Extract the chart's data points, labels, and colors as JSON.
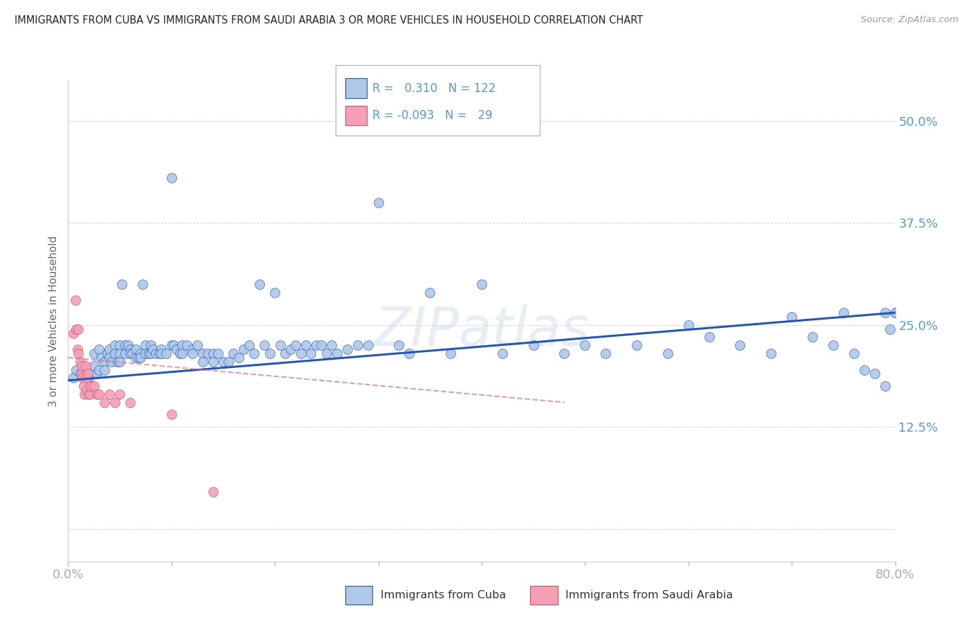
{
  "title": "IMMIGRANTS FROM CUBA VS IMMIGRANTS FROM SAUDI ARABIA 3 OR MORE VEHICLES IN HOUSEHOLD CORRELATION CHART",
  "source": "Source: ZipAtlas.com",
  "ylabel": "3 or more Vehicles in Household",
  "legend_cuba_r": "0.310",
  "legend_cuba_n": "122",
  "legend_saudi_r": "-0.093",
  "legend_saudi_n": "29",
  "legend_label_cuba": "Immigrants from Cuba",
  "legend_label_saudi": "Immigrants from Saudi Arabia",
  "watermark": "ZIPatlas",
  "cuba_color": "#adc8e8",
  "saudi_color": "#f5a0b4",
  "trend_cuba_color": "#2255bb",
  "trend_saudi_color": "#dd7090",
  "background_color": "#ffffff",
  "axis_color": "#5599cc",
  "xlim": [
    0.0,
    0.8
  ],
  "ylim": [
    -0.04,
    0.55
  ],
  "cuba_x": [
    0.005,
    0.008,
    0.012,
    0.015,
    0.018,
    0.02,
    0.022,
    0.025,
    0.025,
    0.028,
    0.03,
    0.03,
    0.032,
    0.035,
    0.035,
    0.038,
    0.04,
    0.04,
    0.042,
    0.045,
    0.045,
    0.048,
    0.05,
    0.05,
    0.05,
    0.052,
    0.055,
    0.055,
    0.058,
    0.06,
    0.06,
    0.062,
    0.065,
    0.065,
    0.068,
    0.07,
    0.07,
    0.072,
    0.075,
    0.075,
    0.078,
    0.08,
    0.08,
    0.082,
    0.085,
    0.088,
    0.09,
    0.09,
    0.095,
    0.1,
    0.1,
    0.102,
    0.105,
    0.108,
    0.11,
    0.11,
    0.115,
    0.12,
    0.12,
    0.125,
    0.13,
    0.13,
    0.135,
    0.14,
    0.14,
    0.145,
    0.15,
    0.155,
    0.16,
    0.165,
    0.17,
    0.175,
    0.18,
    0.185,
    0.19,
    0.195,
    0.2,
    0.205,
    0.21,
    0.215,
    0.22,
    0.225,
    0.23,
    0.235,
    0.24,
    0.245,
    0.25,
    0.255,
    0.26,
    0.27,
    0.28,
    0.29,
    0.3,
    0.32,
    0.33,
    0.35,
    0.37,
    0.4,
    0.42,
    0.45,
    0.48,
    0.5,
    0.52,
    0.55,
    0.58,
    0.6,
    0.62,
    0.65,
    0.68,
    0.7,
    0.72,
    0.74,
    0.75,
    0.76,
    0.77,
    0.78,
    0.79,
    0.79,
    0.795,
    0.8,
    0.8,
    0.8
  ],
  "cuba_y": [
    0.185,
    0.195,
    0.19,
    0.2,
    0.195,
    0.185,
    0.175,
    0.2,
    0.215,
    0.19,
    0.22,
    0.195,
    0.21,
    0.205,
    0.195,
    0.215,
    0.22,
    0.21,
    0.205,
    0.225,
    0.215,
    0.205,
    0.225,
    0.215,
    0.205,
    0.3,
    0.225,
    0.215,
    0.225,
    0.22,
    0.215,
    0.215,
    0.22,
    0.21,
    0.21,
    0.215,
    0.21,
    0.3,
    0.225,
    0.215,
    0.215,
    0.225,
    0.215,
    0.22,
    0.215,
    0.215,
    0.22,
    0.215,
    0.215,
    0.43,
    0.225,
    0.225,
    0.22,
    0.215,
    0.225,
    0.215,
    0.225,
    0.22,
    0.215,
    0.225,
    0.215,
    0.205,
    0.215,
    0.215,
    0.205,
    0.215,
    0.205,
    0.205,
    0.215,
    0.21,
    0.22,
    0.225,
    0.215,
    0.3,
    0.225,
    0.215,
    0.29,
    0.225,
    0.215,
    0.22,
    0.225,
    0.215,
    0.225,
    0.215,
    0.225,
    0.225,
    0.215,
    0.225,
    0.215,
    0.22,
    0.225,
    0.225,
    0.4,
    0.225,
    0.215,
    0.29,
    0.215,
    0.3,
    0.215,
    0.225,
    0.215,
    0.225,
    0.215,
    0.225,
    0.215,
    0.25,
    0.235,
    0.225,
    0.215,
    0.26,
    0.235,
    0.225,
    0.265,
    0.215,
    0.195,
    0.19,
    0.175,
    0.265,
    0.245,
    0.265,
    0.265,
    0.265
  ],
  "saudi_x": [
    0.005,
    0.007,
    0.008,
    0.009,
    0.01,
    0.01,
    0.012,
    0.013,
    0.013,
    0.014,
    0.015,
    0.016,
    0.017,
    0.018,
    0.018,
    0.019,
    0.02,
    0.021,
    0.022,
    0.025,
    0.028,
    0.03,
    0.035,
    0.04,
    0.045,
    0.05,
    0.06,
    0.1,
    0.14
  ],
  "saudi_y": [
    0.24,
    0.28,
    0.245,
    0.22,
    0.245,
    0.215,
    0.205,
    0.19,
    0.2,
    0.185,
    0.175,
    0.165,
    0.2,
    0.185,
    0.17,
    0.19,
    0.165,
    0.165,
    0.175,
    0.175,
    0.165,
    0.165,
    0.155,
    0.165,
    0.155,
    0.165,
    0.155,
    0.14,
    0.045
  ],
  "cuba_trend_x": [
    0.0,
    0.8
  ],
  "cuba_trend_y": [
    0.182,
    0.265
  ],
  "saudi_trend_x": [
    0.0,
    0.48
  ],
  "saudi_trend_y": [
    0.21,
    0.155
  ]
}
